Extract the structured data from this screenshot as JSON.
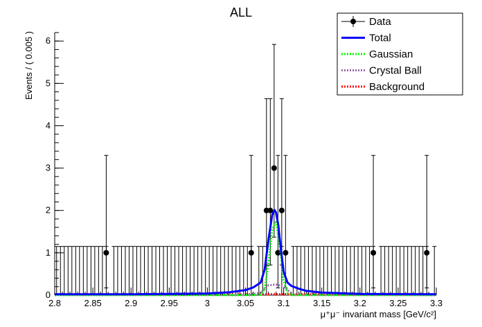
{
  "chart_data": {
    "type": "line",
    "title": "ALL",
    "xlabel": "μ⁺μ⁻ invariant mass [GeV/c²]",
    "ylabel": "Events / ( 0.005 )",
    "xlim": [
      2.8,
      3.3
    ],
    "ylim": [
      0,
      6.2
    ],
    "x_ticks": [
      2.8,
      2.85,
      2.9,
      2.95,
      3.0,
      3.05,
      3.1,
      3.15,
      3.2,
      3.25,
      3.3
    ],
    "x_tick_labels": [
      "2.8",
      "2.85",
      "2.9",
      "2.95",
      "3",
      "3.05",
      "3.1",
      "3.15",
      "3.2",
      "3.25",
      "3.3"
    ],
    "y_ticks": [
      0,
      1,
      2,
      3,
      4,
      5,
      6
    ],
    "y_tick_labels": [
      "0",
      "1",
      "2",
      "3",
      "4",
      "5",
      "6"
    ],
    "bin_width": 0.005,
    "data_points": [
      {
        "x": 2.8675,
        "y": 1,
        "err_up": 2.3,
        "err_low": 0.83
      },
      {
        "x": 3.0575,
        "y": 1,
        "err_up": 2.3,
        "err_low": 0.83
      },
      {
        "x": 3.0775,
        "y": 2,
        "err_up": 2.64,
        "err_low": 1.29
      },
      {
        "x": 3.0825,
        "y": 2,
        "err_up": 2.64,
        "err_low": 1.29
      },
      {
        "x": 3.0875,
        "y": 3,
        "err_up": 2.92,
        "err_low": 1.63
      },
      {
        "x": 3.0925,
        "y": 1,
        "err_up": 2.3,
        "err_low": 0.83
      },
      {
        "x": 3.0975,
        "y": 2,
        "err_up": 2.64,
        "err_low": 1.29
      },
      {
        "x": 3.1025,
        "y": 1,
        "err_up": 2.3,
        "err_low": 0.83
      },
      {
        "x": 3.2175,
        "y": 1,
        "err_up": 2.3,
        "err_low": 0.83
      },
      {
        "x": 3.2875,
        "y": 1,
        "err_up": 2.3,
        "err_low": 0.83
      }
    ],
    "empty_bin_err_up": 1.15,
    "series": [
      {
        "name": "Total",
        "color": "#0000ff",
        "dash": "solid",
        "x": [
          2.8,
          2.9,
          3.0,
          3.03,
          3.05,
          3.06,
          3.07,
          3.075,
          3.08,
          3.085,
          3.088,
          3.09,
          3.093,
          3.095,
          3.1,
          3.105,
          3.11,
          3.12,
          3.13,
          3.15,
          3.2,
          3.3
        ],
        "y": [
          0.02,
          0.02,
          0.04,
          0.07,
          0.12,
          0.18,
          0.3,
          0.6,
          1.3,
          1.9,
          2.01,
          1.95,
          1.65,
          1.3,
          0.55,
          0.3,
          0.22,
          0.15,
          0.1,
          0.06,
          0.03,
          0.02
        ]
      },
      {
        "name": "Gaussian",
        "color": "#00ff00",
        "dash": "dotted",
        "x": [
          2.8,
          3.06,
          3.07,
          3.075,
          3.08,
          3.085,
          3.09,
          3.095,
          3.1,
          3.105,
          3.11,
          3.3
        ],
        "y": [
          0,
          0,
          0.01,
          0.15,
          0.75,
          1.55,
          1.75,
          1.15,
          0.35,
          0.05,
          0,
          0
        ]
      },
      {
        "name": "Crystal Ball",
        "color": "#9966aa",
        "dash": "dotted",
        "x": [
          2.8,
          3.05,
          3.07,
          3.08,
          3.09,
          3.1,
          3.11,
          3.12,
          3.3
        ],
        "y": [
          0,
          0.01,
          0.05,
          0.23,
          0.25,
          0.2,
          0.05,
          0.01,
          0
        ]
      },
      {
        "name": "Background",
        "color": "#ff0000",
        "dash": "dotted",
        "x": [
          2.8,
          3.3
        ],
        "y": [
          0.02,
          0.02
        ]
      }
    ],
    "legend": {
      "position": "top-right",
      "entries": [
        {
          "label": "Data",
          "style": "marker",
          "color": "#000000"
        },
        {
          "label": "Total",
          "style": "solid",
          "color": "#0000ff"
        },
        {
          "label": "Gaussian",
          "style": "dotted",
          "color": "#00ff00"
        },
        {
          "label": "Crystal Ball",
          "style": "dotted",
          "color": "#9966aa"
        },
        {
          "label": "Background",
          "style": "dotted",
          "color": "#ff0000"
        }
      ]
    }
  }
}
